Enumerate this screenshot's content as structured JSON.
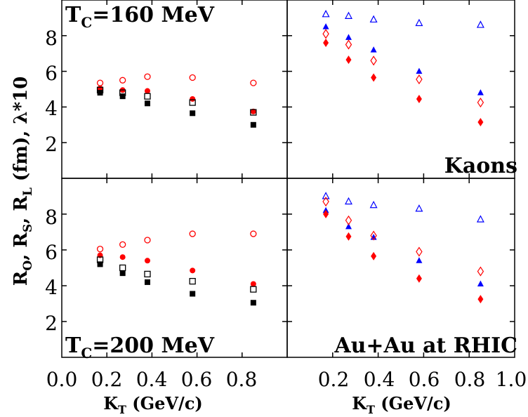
{
  "figure": {
    "ylabel_parts": [
      "R",
      "O",
      ",  R",
      "S",
      ",  R",
      "L",
      " (fm),  λ*10"
    ],
    "xlabel_main": "K",
    "xlabel_sub": "T",
    "xlabel_rest": " (GeV/c)"
  },
  "chart_data": [
    {
      "panel": "top-left",
      "type": "scatter",
      "annotation": "T_C=160 MeV",
      "annotation_main": "T",
      "annotation_sub": "C",
      "annotation_rest": "=160  MeV",
      "xlim": [
        0.0,
        1.0
      ],
      "ylim": [
        0,
        10
      ],
      "yticks": [
        2,
        4,
        6,
        8
      ],
      "series": [
        {
          "marker": "open-circle",
          "color": "#ff0000",
          "x": [
            0.17,
            0.27,
            0.38,
            0.58,
            0.85
          ],
          "y": [
            5.35,
            5.5,
            5.7,
            5.65,
            5.35
          ]
        },
        {
          "marker": "filled-circle",
          "color": "#ff0000",
          "x": [
            0.17,
            0.27,
            0.38,
            0.58,
            0.85
          ],
          "y": [
            5.05,
            4.95,
            4.9,
            4.45,
            3.75
          ]
        },
        {
          "marker": "open-square",
          "color": "#000000",
          "x": [
            0.17,
            0.27,
            0.38,
            0.58,
            0.85
          ],
          "y": [
            4.95,
            4.8,
            4.6,
            4.25,
            3.7
          ]
        },
        {
          "marker": "filled-square",
          "color": "#000000",
          "x": [
            0.17,
            0.27,
            0.38,
            0.58,
            0.85
          ],
          "y": [
            4.8,
            4.6,
            4.2,
            3.65,
            3.0
          ]
        }
      ]
    },
    {
      "panel": "top-right",
      "type": "scatter",
      "annotation": "Kaons",
      "xlim": [
        0.0,
        1.0
      ],
      "ylim": [
        0,
        10
      ],
      "series": [
        {
          "marker": "open-triangle",
          "color": "#0000ff",
          "x": [
            0.17,
            0.27,
            0.38,
            0.58,
            0.85
          ],
          "y": [
            9.2,
            9.1,
            8.9,
            8.7,
            8.6
          ]
        },
        {
          "marker": "filled-triangle",
          "color": "#0000ff",
          "x": [
            0.17,
            0.27,
            0.38,
            0.58,
            0.85
          ],
          "y": [
            8.5,
            7.9,
            7.2,
            6.0,
            4.8
          ]
        },
        {
          "marker": "open-diamond",
          "color": "#ff0000",
          "x": [
            0.17,
            0.27,
            0.38,
            0.58,
            0.85
          ],
          "y": [
            8.1,
            7.5,
            6.6,
            5.55,
            4.25
          ]
        },
        {
          "marker": "filled-diamond",
          "color": "#ff0000",
          "x": [
            0.17,
            0.27,
            0.38,
            0.58,
            0.85
          ],
          "y": [
            7.6,
            6.65,
            5.65,
            4.45,
            3.15
          ]
        }
      ]
    },
    {
      "panel": "bottom-left",
      "type": "scatter",
      "annotation": "T_C=200 MeV",
      "annotation_main": "T",
      "annotation_sub": "C",
      "annotation_rest": "=200  MeV",
      "xlim": [
        0.0,
        1.0
      ],
      "ylim": [
        0,
        10
      ],
      "yticks": [
        2,
        4,
        6,
        8
      ],
      "xticks": [
        "0.0",
        "0.2",
        "0.4",
        "0.6",
        "0.8"
      ],
      "series": [
        {
          "marker": "open-circle",
          "color": "#ff0000",
          "x": [
            0.17,
            0.27,
            0.38,
            0.58,
            0.85
          ],
          "y": [
            6.05,
            6.3,
            6.55,
            6.9,
            6.9
          ]
        },
        {
          "marker": "filled-circle",
          "color": "#ff0000",
          "x": [
            0.17,
            0.27,
            0.38,
            0.58,
            0.85
          ],
          "y": [
            5.7,
            5.6,
            5.4,
            4.85,
            4.1
          ]
        },
        {
          "marker": "open-square",
          "color": "#000000",
          "x": [
            0.17,
            0.27,
            0.38,
            0.58,
            0.85
          ],
          "y": [
            5.45,
            5.0,
            4.65,
            4.25,
            3.8
          ]
        },
        {
          "marker": "filled-square",
          "color": "#000000",
          "x": [
            0.17,
            0.27,
            0.38,
            0.58,
            0.85
          ],
          "y": [
            5.2,
            4.7,
            4.2,
            3.55,
            3.05
          ]
        }
      ]
    },
    {
      "panel": "bottom-right",
      "type": "scatter",
      "annotation": "Au+Au at RHIC",
      "xlim": [
        0.0,
        1.0
      ],
      "ylim": [
        0,
        10
      ],
      "xticks": [
        "0.2",
        "0.4",
        "0.6",
        "0.8",
        "1.0"
      ],
      "series": [
        {
          "marker": "open-triangle",
          "color": "#0000ff",
          "x": [
            0.17,
            0.27,
            0.38,
            0.58,
            0.85
          ],
          "y": [
            9.0,
            8.7,
            8.5,
            8.3,
            7.7
          ]
        },
        {
          "marker": "filled-triangle",
          "color": "#0000ff",
          "x": [
            0.17,
            0.27,
            0.38,
            0.58,
            0.85
          ],
          "y": [
            8.2,
            7.3,
            6.7,
            5.4,
            4.1
          ]
        },
        {
          "marker": "open-diamond",
          "color": "#ff0000",
          "x": [
            0.17,
            0.27,
            0.38,
            0.58,
            0.85
          ],
          "y": [
            8.7,
            7.65,
            6.8,
            5.9,
            4.8
          ]
        },
        {
          "marker": "filled-diamond",
          "color": "#ff0000",
          "x": [
            0.17,
            0.27,
            0.38,
            0.58,
            0.85
          ],
          "y": [
            8.0,
            6.75,
            5.65,
            4.4,
            3.25
          ]
        }
      ]
    }
  ]
}
